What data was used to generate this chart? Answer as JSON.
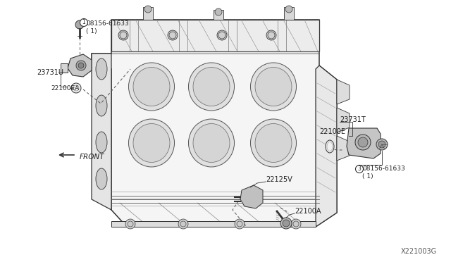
{
  "bg_color": "#ffffff",
  "line_color": "#333333",
  "labels": {
    "bolt1_num": "08156-61633",
    "bolt1_sub": "( 1)",
    "part_23731U": "23731U",
    "part_22100EA": "22100EA",
    "front_label": "FRONT",
    "part_23731T": "23731T",
    "part_22100E": "22100E",
    "bolt3_num": "08156-61633",
    "bolt3_sub": "( 1)",
    "part_22125V": "22125V",
    "part_22100A": "22100A",
    "diagram_num": "X221003G"
  }
}
